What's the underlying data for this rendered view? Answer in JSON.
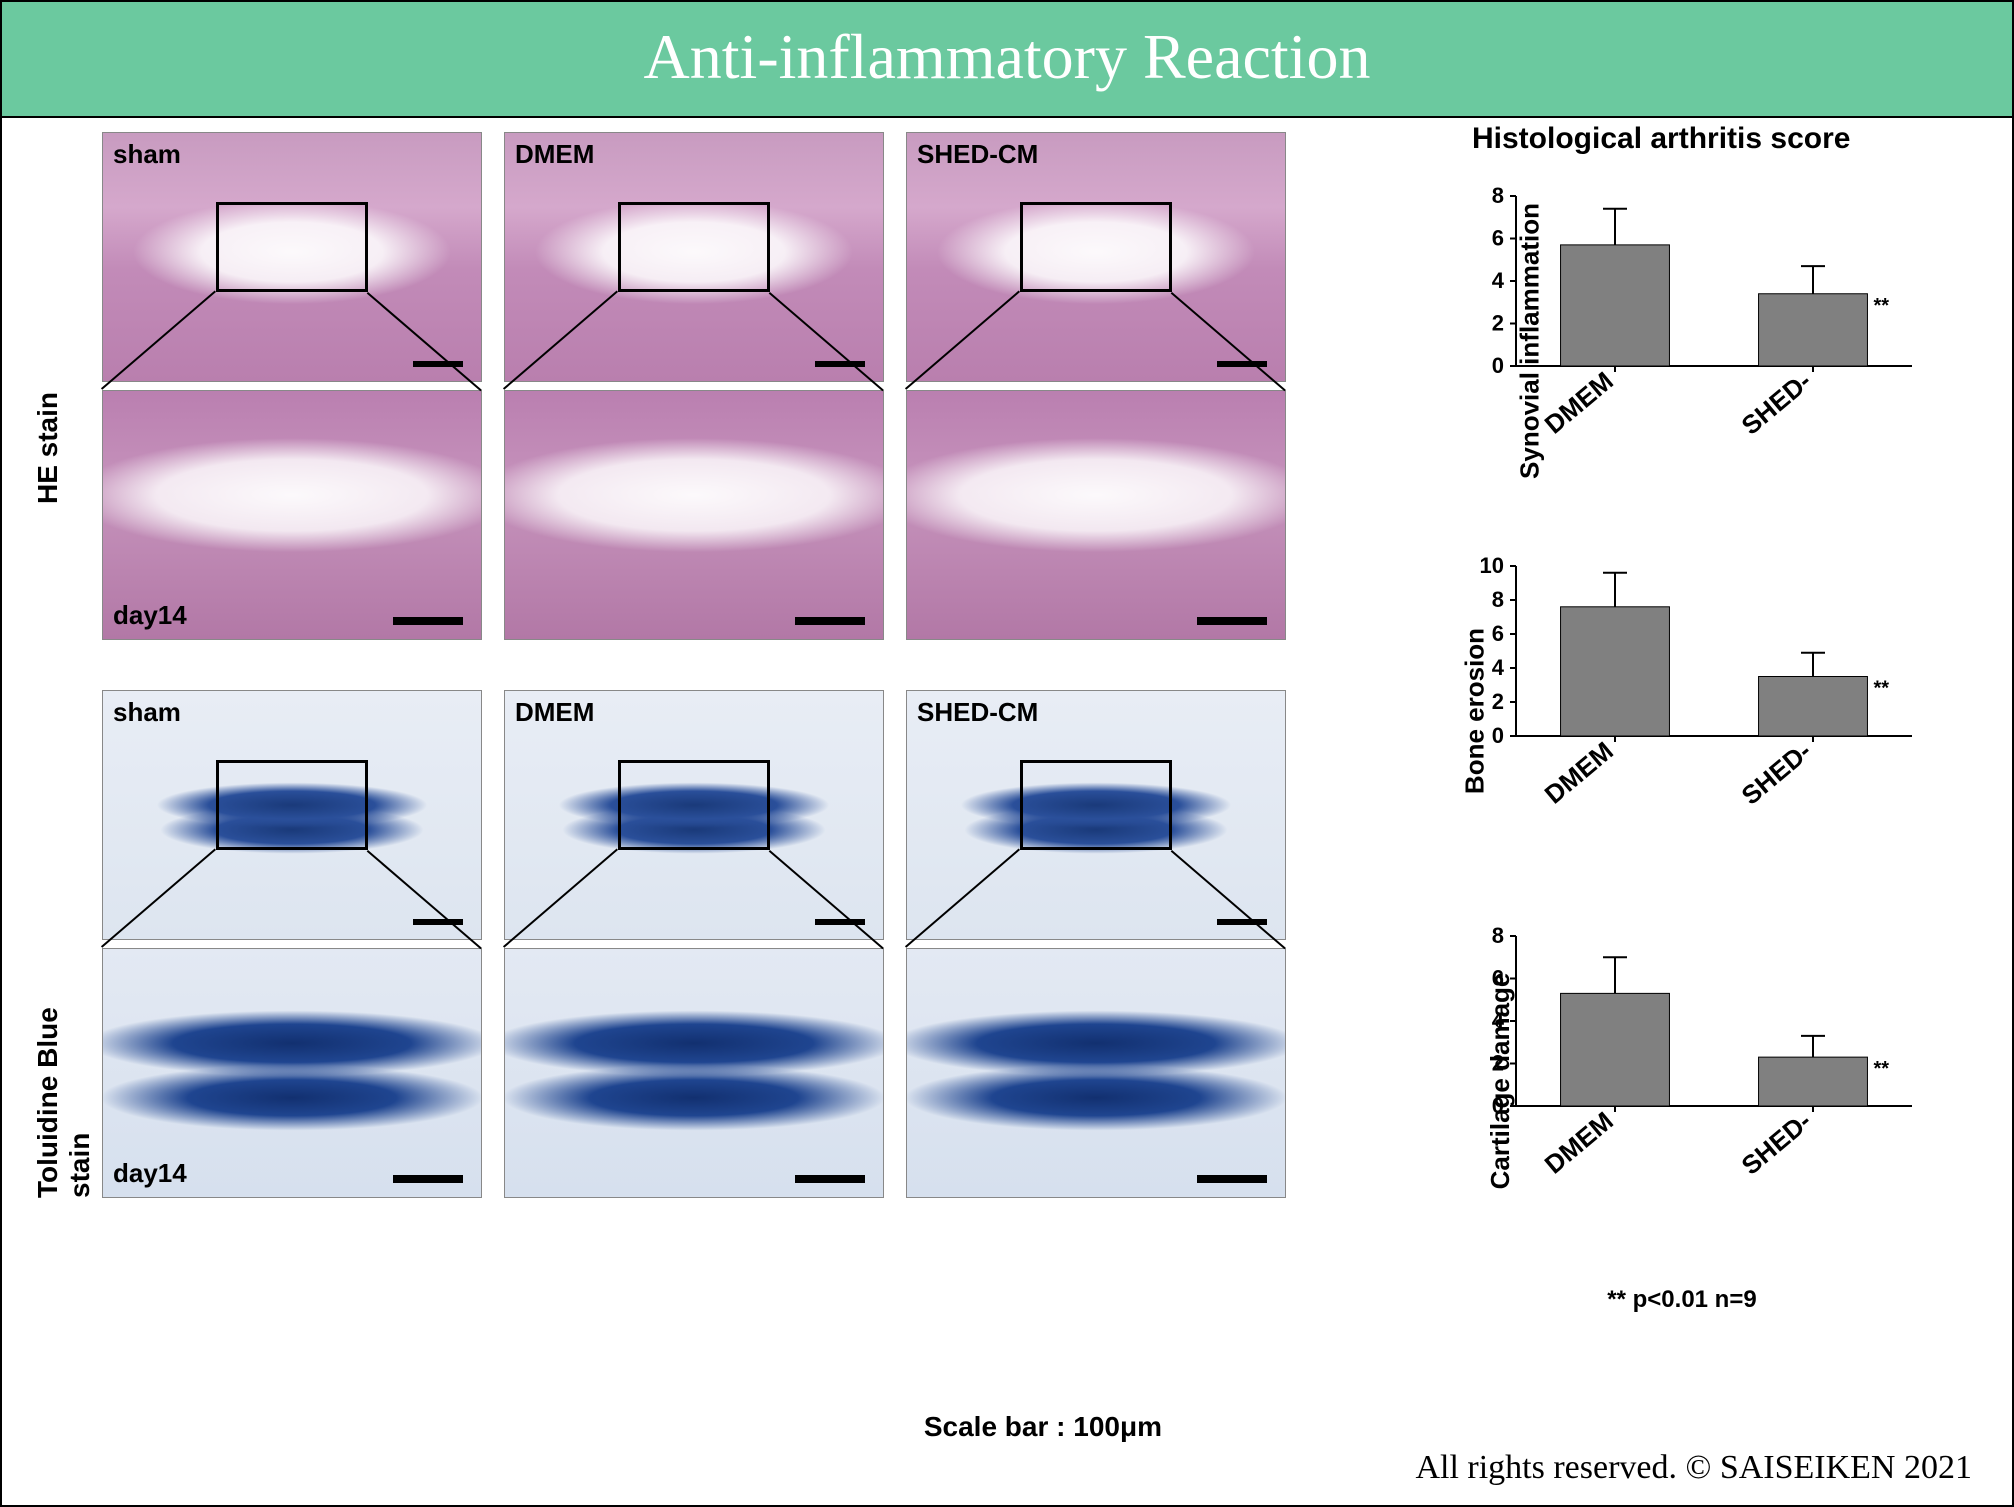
{
  "title": "Anti-inflammatory Reaction",
  "title_bg": "#6bc99f",
  "title_color": "#ffffff",
  "histology": {
    "stains": [
      {
        "name": "HE  stain",
        "bg_class": "he-bg"
      },
      {
        "name": "Toluidine Blue stain",
        "bg_class": "tb-bg"
      }
    ],
    "columns": [
      "sham",
      "DMEM",
      "SHED-CM"
    ],
    "zoom_label": "day14",
    "scale_caption": "Scale bar : 100μm",
    "roi": {
      "left_pct": 30,
      "top_pct": 28,
      "w_pct": 40,
      "h_pct": 36
    },
    "scalebar_color": "#000000"
  },
  "charts_title": "Histological  arthritis score",
  "charts": [
    {
      "type": "bar",
      "ylabel": "Synovial inflammation",
      "categories": [
        "DMEM",
        "SHED-"
      ],
      "values": [
        5.7,
        3.4
      ],
      "errors": [
        1.7,
        1.3
      ],
      "sig": [
        null,
        "**"
      ],
      "ylim": [
        0,
        8
      ],
      "ytick_step": 2,
      "bar_color": "#808080",
      "bar_width": 0.55,
      "axis_color": "#000000",
      "font_size": 22,
      "label_fontsize": 26
    },
    {
      "type": "bar",
      "ylabel": "Bone erosion",
      "categories": [
        "DMEM",
        "SHED-"
      ],
      "values": [
        7.6,
        3.5
      ],
      "errors": [
        2.0,
        1.4
      ],
      "sig": [
        null,
        "**"
      ],
      "ylim": [
        0,
        10
      ],
      "ytick_step": 2,
      "bar_color": "#808080",
      "bar_width": 0.55,
      "axis_color": "#000000",
      "font_size": 22,
      "label_fontsize": 26
    },
    {
      "type": "bar",
      "ylabel": "Cartilage damage",
      "categories": [
        "DMEM",
        "SHED-"
      ],
      "values": [
        5.3,
        2.3
      ],
      "errors": [
        1.7,
        1.0
      ],
      "sig": [
        null,
        "**"
      ],
      "ylim": [
        0,
        8
      ],
      "ytick_step": 2,
      "bar_color": "#808080",
      "bar_width": 0.55,
      "axis_color": "#000000",
      "font_size": 22,
      "label_fontsize": 26
    }
  ],
  "stats_note": "**  p<0.01    n=9",
  "copyright": "All rights reserved. © SAISEIKEN  2021"
}
